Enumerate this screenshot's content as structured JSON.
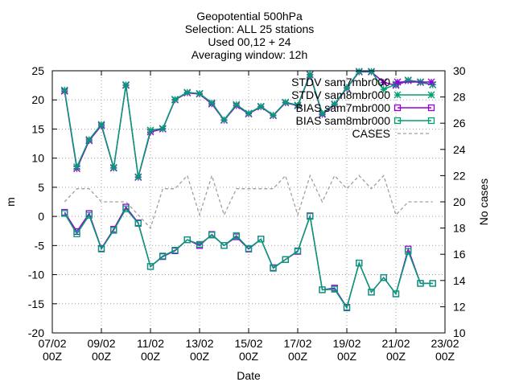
{
  "chart_data": {
    "type": "line",
    "title": [
      "Geopotential 500hPa",
      "Selection: ALL      25 stations",
      "Used 00,12 + 24",
      "Averaging window: 12h"
    ],
    "xlabel": "Date",
    "ylabel": "m",
    "y2label": "No cases",
    "x_unit": "days",
    "x_ticks": [
      "07/02\n00Z",
      "09/02\n00Z",
      "11/02\n00Z",
      "13/02\n00Z",
      "15/02\n00Z",
      "17/02\n00Z",
      "19/02\n00Z",
      "21/02\n00Z",
      "23/02\n00Z"
    ],
    "xlim": [
      "07/02 00Z",
      "23/02 00Z"
    ],
    "ylim": [
      -20,
      25
    ],
    "y2lim": [
      10,
      30
    ],
    "y_ticks": [
      -20,
      -15,
      -10,
      -5,
      0,
      5,
      10,
      15,
      20,
      25
    ],
    "y2_ticks": [
      10,
      12,
      14,
      16,
      18,
      20,
      22,
      24,
      26,
      28,
      30
    ],
    "grid": true,
    "legend_position": "top-right",
    "x": [
      "07/02 12Z",
      "08/02 00Z",
      "08/02 12Z",
      "09/02 00Z",
      "09/02 12Z",
      "10/02 00Z",
      "10/02 12Z",
      "11/02 00Z",
      "11/02 12Z",
      "12/02 00Z",
      "12/02 12Z",
      "13/02 00Z",
      "13/02 12Z",
      "14/02 00Z",
      "14/02 12Z",
      "15/02 00Z",
      "15/02 12Z",
      "16/02 00Z",
      "16/02 12Z",
      "17/02 00Z",
      "17/02 12Z",
      "18/02 00Z",
      "18/02 12Z",
      "19/02 00Z",
      "19/02 12Z",
      "20/02 00Z",
      "20/02 12Z",
      "21/02 00Z",
      "21/02 12Z",
      "22/02 00Z",
      "22/02 12Z"
    ],
    "series": [
      {
        "name": "STDV sam7mbr000",
        "axis": "y1",
        "color": "#9400d3",
        "marker": "star",
        "values": [
          21.5,
          8.2,
          13.0,
          15.6,
          8.3,
          22.5,
          6.7,
          14.5,
          15.0,
          20.0,
          21.2,
          21.0,
          19.3,
          16.5,
          19.0,
          17.6,
          18.8,
          17.3,
          19.5,
          19.0,
          24.3,
          17.5,
          19.2,
          22.0,
          24.8,
          24.8,
          23.0,
          22.5,
          23.3,
          23.0,
          22.6
        ]
      },
      {
        "name": "STDV sam8mbr000",
        "axis": "y1",
        "color": "#009e73",
        "marker": "star",
        "values": [
          21.7,
          8.5,
          13.2,
          15.8,
          8.4,
          22.6,
          6.8,
          14.8,
          15.1,
          20.1,
          21.3,
          21.1,
          19.5,
          16.6,
          19.2,
          17.7,
          18.9,
          17.4,
          19.6,
          19.1,
          24.4,
          17.7,
          19.3,
          22.1,
          24.9,
          24.9,
          21.8,
          22.7,
          23.4,
          23.1,
          22.6
        ]
      },
      {
        "name": "BIAS sam7mbr000",
        "axis": "y1",
        "color": "#9400d3",
        "marker": "open-square",
        "values": [
          0.7,
          -2.6,
          0.5,
          -5.5,
          -2.2,
          1.6,
          -1.1,
          -8.6,
          -6.9,
          -5.9,
          -4.0,
          -5.0,
          -3.1,
          -5.0,
          -3.5,
          -5.6,
          -3.9,
          -8.8,
          -7.4,
          -6.0,
          0.1,
          -12.6,
          -12.3,
          -15.6,
          -8.0,
          -13.0,
          -10.5,
          -13.3,
          -5.6,
          -11.5,
          -11.5
        ]
      },
      {
        "name": "BIAS sam8mbr000",
        "axis": "y1",
        "color": "#009e73",
        "marker": "open-square",
        "values": [
          0.5,
          -3.0,
          0.2,
          -5.6,
          -2.4,
          1.3,
          -1.2,
          -8.6,
          -6.8,
          -5.8,
          -4.0,
          -4.8,
          -3.2,
          -5.0,
          -3.3,
          -5.5,
          -3.9,
          -8.9,
          -7.4,
          -5.9,
          0.0,
          -12.6,
          -12.5,
          -15.7,
          -8.0,
          -13.0,
          -10.5,
          -13.3,
          -6.0,
          -11.5,
          -11.5
        ]
      },
      {
        "name": "CASES",
        "axis": "y2",
        "color": "#a0a0a0",
        "marker": "none",
        "dash": true,
        "values": [
          20,
          21,
          21,
          20,
          20,
          20,
          19,
          18,
          21,
          21,
          22,
          19,
          22,
          19,
          21,
          21,
          21,
          21,
          22,
          19,
          22,
          20,
          22,
          21,
          22,
          21,
          22,
          19,
          20,
          20,
          20
        ]
      }
    ]
  }
}
